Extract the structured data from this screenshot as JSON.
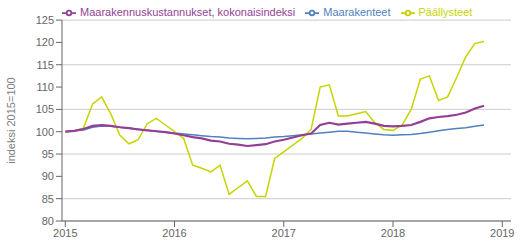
{
  "chart_data": {
    "type": "line",
    "y_label": "indeksi 2015=100",
    "x": [
      2015,
      2015.0833333333333,
      2015.1666666666667,
      2015.25,
      2015.3333333333333,
      2015.4166666666667,
      2015.5,
      2015.5833333333333,
      2015.6666666666667,
      2015.75,
      2015.8333333333333,
      2015.9166666666667,
      2016,
      2016.0833333333333,
      2016.1666666666667,
      2016.25,
      2016.3333333333333,
      2016.4166666666667,
      2016.5,
      2016.5833333333333,
      2016.6666666666667,
      2016.75,
      2016.8333333333333,
      2016.9166666666667,
      2017,
      2017.0833333333333,
      2017.1666666666667,
      2017.25,
      2017.3333333333333,
      2017.4166666666667,
      2017.5,
      2017.5833333333333,
      2017.6666666666667,
      2017.75,
      2017.8333333333333,
      2017.9166666666667,
      2018,
      2018.0833333333333,
      2018.1666666666667,
      2018.25,
      2018.3333333333333,
      2018.4166666666667,
      2018.5,
      2018.5833333333333,
      2018.6666666666667,
      2018.75,
      2018.8333333333333
    ],
    "series": [
      {
        "name": "Maarakenteet",
        "color": "#4f81bd",
        "values": [
          100.0,
          100.2,
          100.4,
          101.0,
          101.3,
          101.2,
          101.0,
          100.8,
          100.6,
          100.3,
          100.1,
          99.9,
          99.7,
          99.5,
          99.3,
          99.1,
          98.9,
          98.8,
          98.6,
          98.5,
          98.4,
          98.5,
          98.6,
          98.8,
          98.9,
          99.1,
          99.3,
          99.5,
          99.7,
          99.9,
          100.1,
          100.1,
          99.9,
          99.7,
          99.5,
          99.3,
          99.2,
          99.3,
          99.4,
          99.6,
          99.9,
          100.2,
          100.5,
          100.7,
          100.9,
          101.2,
          101.5
        ]
      },
      {
        "name": "Päällysteet",
        "color": "#c8d400",
        "values": [
          100.0,
          100.2,
          100.8,
          106.2,
          107.8,
          104.0,
          99.2,
          97.3,
          98.2,
          101.8,
          103.0,
          101.5,
          100.0,
          98.5,
          92.5,
          91.8,
          91.0,
          92.5,
          86.0,
          87.5,
          89.0,
          85.5,
          85.5,
          94.0,
          95.5,
          97.0,
          98.5,
          100.5,
          110.0,
          110.5,
          103.5,
          103.5,
          104.0,
          104.5,
          102.0,
          100.5,
          100.3,
          101.5,
          105.0,
          111.8,
          112.5,
          107.0,
          107.8,
          112.2,
          116.8,
          119.8,
          120.2
        ]
      },
      {
        "name": "Maarakennuskustannukset, kokonaisindeksi",
        "color": "#943f96",
        "values": [
          100.0,
          100.2,
          100.6,
          101.3,
          101.5,
          101.3,
          101.0,
          100.8,
          100.5,
          100.3,
          100.1,
          99.9,
          99.6,
          99.2,
          98.8,
          98.5,
          98.0,
          97.8,
          97.3,
          97.1,
          96.8,
          97.0,
          97.2,
          97.8,
          98.2,
          98.7,
          99.2,
          99.6,
          101.5,
          102.0,
          101.6,
          101.8,
          102.0,
          102.2,
          101.8,
          101.3,
          101.2,
          101.3,
          101.5,
          102.2,
          103.0,
          103.3,
          103.5,
          103.8,
          104.3,
          105.2,
          105.8
        ]
      }
    ],
    "xlim": [
      2014.97,
      2019.08
    ],
    "xticks": [
      2015,
      2016,
      2017,
      2018,
      2019
    ],
    "ylim": [
      80,
      125
    ],
    "yticks": [
      80,
      85,
      90,
      95,
      100,
      105,
      110,
      115,
      120,
      125
    ],
    "grid": true,
    "legend": "upper left"
  }
}
